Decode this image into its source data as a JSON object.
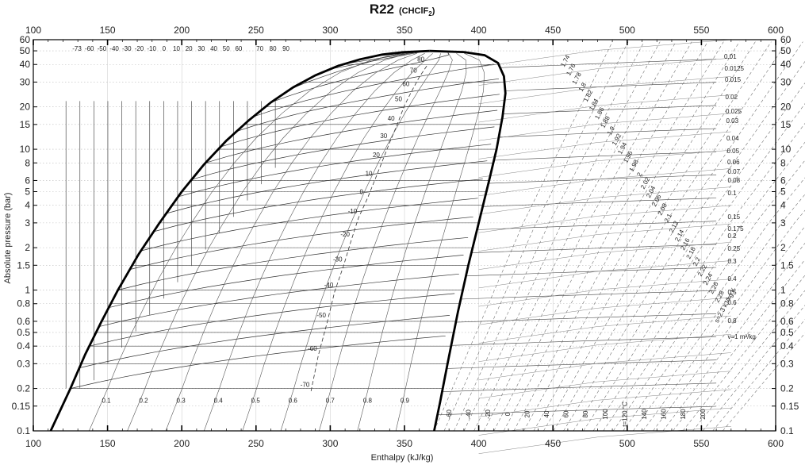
{
  "chart_data": {
    "type": "line",
    "title": "R22",
    "subtitle": "(CHClF",
    "subtitle_sub": "2",
    "subtitle_close": ")",
    "xlabel": "Enthalpy (kJ/kg)",
    "ylabel": "Absolute pressure (bar)",
    "xlim": [
      100,
      600
    ],
    "ylim": [
      0.1,
      60
    ],
    "yscale": "log",
    "grid": true,
    "x_ticks": [
      "100",
      "150",
      "200",
      "250",
      "300",
      "350",
      "400",
      "450",
      "500",
      "550",
      "600"
    ],
    "y_ticks": [
      {
        "v": 60,
        "label": "60"
      },
      {
        "v": 50,
        "label": "50"
      },
      {
        "v": 40,
        "label": "40"
      },
      {
        "v": 30,
        "label": "30"
      },
      {
        "v": 20,
        "label": "20"
      },
      {
        "v": 15,
        "label": "15"
      },
      {
        "v": 10,
        "label": "10"
      },
      {
        "v": 8,
        "label": "8"
      },
      {
        "v": 6,
        "label": "6"
      },
      {
        "v": 5,
        "label": "5"
      },
      {
        "v": 4,
        "label": "4"
      },
      {
        "v": 3,
        "label": "3"
      },
      {
        "v": 2,
        "label": "2"
      },
      {
        "v": 1.5,
        "label": "1.5"
      },
      {
        "v": 1,
        "label": "1"
      },
      {
        "v": 0.8,
        "label": "0.8"
      },
      {
        "v": 0.6,
        "label": "0.6"
      },
      {
        "v": 0.5,
        "label": "0.5"
      },
      {
        "v": 0.4,
        "label": "0.4"
      },
      {
        "v": 0.3,
        "label": "0.3"
      },
      {
        "v": 0.2,
        "label": "0.2"
      },
      {
        "v": 0.15,
        "label": "0.15"
      },
      {
        "v": 0.1,
        "label": "0.1"
      }
    ],
    "critical_point": {
      "h": 367,
      "p": 49.9
    },
    "saturated_liquid": [
      {
        "h": 111.7,
        "p": 0.1
      },
      {
        "h": 125,
        "p": 0.2
      },
      {
        "h": 135,
        "p": 0.35
      },
      {
        "h": 146,
        "p": 0.6
      },
      {
        "h": 157,
        "p": 1.0
      },
      {
        "h": 171,
        "p": 1.8
      },
      {
        "h": 185,
        "p": 3.0
      },
      {
        "h": 200,
        "p": 5.0
      },
      {
        "h": 215,
        "p": 7.8
      },
      {
        "h": 230,
        "p": 11.5
      },
      {
        "h": 245,
        "p": 16.0
      },
      {
        "h": 260,
        "p": 21.5
      },
      {
        "h": 275,
        "p": 27.5
      },
      {
        "h": 290,
        "p": 33.5
      },
      {
        "h": 305,
        "p": 39.0
      },
      {
        "h": 320,
        "p": 43.5
      },
      {
        "h": 335,
        "p": 47.0
      },
      {
        "h": 350,
        "p": 49.0
      },
      {
        "h": 367,
        "p": 49.9
      }
    ],
    "saturated_vapour": [
      {
        "h": 367,
        "p": 49.9
      },
      {
        "h": 390,
        "p": 49.0
      },
      {
        "h": 404,
        "p": 46.5
      },
      {
        "h": 413,
        "p": 41.0
      },
      {
        "h": 417,
        "p": 33.0
      },
      {
        "h": 418,
        "p": 25.0
      },
      {
        "h": 416,
        "p": 17.0
      },
      {
        "h": 412,
        "p": 10.0
      },
      {
        "h": 407,
        "p": 6.0
      },
      {
        "h": 400,
        "p": 3.0
      },
      {
        "h": 393,
        "p": 1.5
      },
      {
        "h": 386,
        "p": 0.7
      },
      {
        "h": 379,
        "p": 0.3
      },
      {
        "h": 374,
        "p": 0.16
      },
      {
        "h": 370,
        "p": 0.1
      }
    ],
    "isotherm_labels_liquid": [
      "-73",
      "-60",
      "-50",
      "-40",
      "-30",
      "-20",
      "-10",
      "0",
      "10",
      "20",
      "30",
      "40",
      "50",
      "60",
      "70",
      "80",
      "90"
    ],
    "isotherm_labels_dome": [
      {
        "label": "80",
        "h": 361,
        "p": 42
      },
      {
        "label": "70",
        "h": 356,
        "p": 35
      },
      {
        "label": "60",
        "h": 351,
        "p": 28
      },
      {
        "label": "50",
        "h": 346,
        "p": 22
      },
      {
        "label": "40",
        "h": 341,
        "p": 16
      },
      {
        "label": "30",
        "h": 336,
        "p": 12
      },
      {
        "label": "20",
        "h": 331,
        "p": 8.8
      },
      {
        "label": "10",
        "h": 326,
        "p": 6.5
      },
      {
        "label": "0",
        "h": 321,
        "p": 4.8
      },
      {
        "label": "-10",
        "h": 315,
        "p": 3.5
      },
      {
        "label": "-20",
        "h": 310,
        "p": 2.4
      },
      {
        "label": "-30",
        "h": 305,
        "p": 1.6
      },
      {
        "label": "-40",
        "h": 299,
        "p": 1.05
      },
      {
        "label": "-50",
        "h": 294,
        "p": 0.64
      },
      {
        "label": "-60",
        "h": 288,
        "p": 0.37
      },
      {
        "label": "-70",
        "h": 283,
        "p": 0.205
      }
    ],
    "quality_labels": [
      "0.1",
      "0.2",
      "0.3",
      "0.4",
      "0.5",
      "0.6",
      "0.7",
      "0.8",
      "0.9"
    ],
    "entropy_labels": [
      "1.74",
      "1.76",
      "1.78",
      "1.8",
      "1.82",
      "1.84",
      "1.86",
      "1.88",
      "1.9",
      "1.92",
      "1.94",
      "1.96",
      "1.98",
      "2",
      "2.02",
      "2.04",
      "2.06",
      "2.08",
      "2.1",
      "2.12",
      "2.14",
      "2.16",
      "2.18",
      "2.2",
      "2.22",
      "2.24",
      "2.26",
      "2.28",
      "s=2.3 kJ/kg K"
    ],
    "volume_labels": [
      "0.01",
      "0.0125",
      "0.015",
      "0.02",
      "0.025",
      "0.03",
      "0.04",
      "0.05",
      "0.06",
      "0.07",
      "0.08",
      "0.1",
      "0.15",
      "0.175",
      "0.2",
      "0.25",
      "0.3",
      "0.4",
      "0.5",
      "0.6",
      "0.8",
      "v=1 m³/kg"
    ],
    "vapour_temp_labels": [
      "-60",
      "-40",
      "-20",
      "0",
      "20",
      "40",
      "60",
      "80",
      "100",
      "t=120 °C",
      "140",
      "160",
      "180",
      "200"
    ]
  }
}
